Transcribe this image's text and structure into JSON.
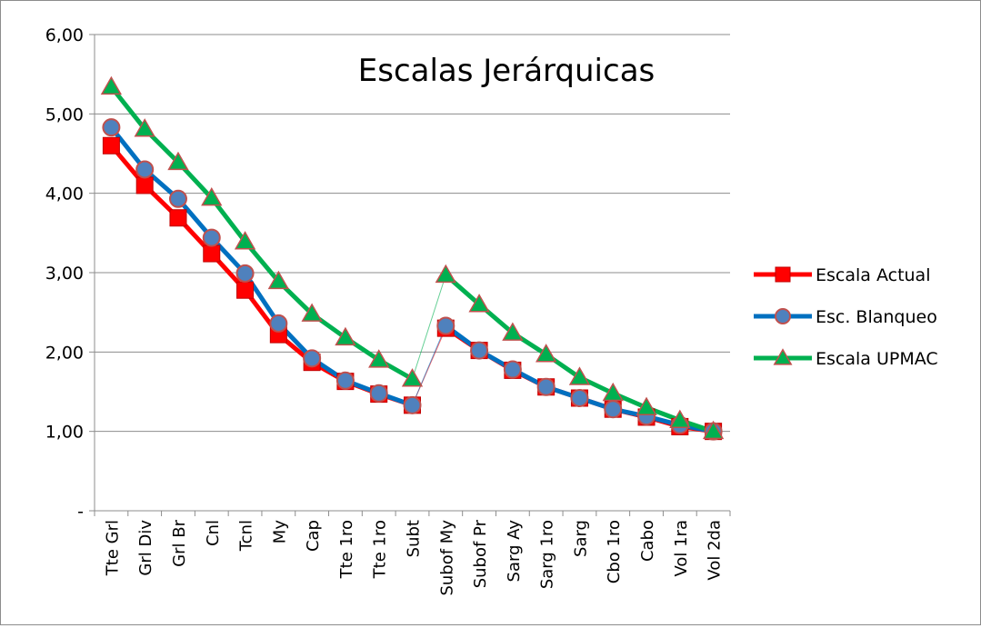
{
  "chart_data": {
    "type": "line",
    "title": "Escalas Jerárquicas",
    "xlabel": "",
    "ylabel": "",
    "categories": [
      "Tte Grl",
      "Grl Div",
      "Grl Br",
      "Cnl",
      "Tcnl",
      "My",
      "Cap",
      "Tte 1ro",
      "Tte 1ro",
      "Subt",
      "Subof My",
      "Subof Pr",
      "Sarg Ay",
      "Sarg 1ro",
      "Sarg",
      "Cbo 1ro",
      "Cabo",
      "Vol 1ra",
      "Vol 2da"
    ],
    "ylim": [
      0,
      6
    ],
    "yticks": [
      0,
      1,
      2,
      3,
      4,
      5,
      6
    ],
    "ytick_labels": [
      "-",
      "1,00",
      "2,00",
      "3,00",
      "4,00",
      "5,00",
      "6,00"
    ],
    "grid": "horizontal",
    "legend_position": "right",
    "series": [
      {
        "name": "Escala Actual",
        "color": "#ff0000",
        "marker": "square",
        "values": [
          4.6,
          4.1,
          3.69,
          3.24,
          2.78,
          2.22,
          1.87,
          1.63,
          1.47,
          1.33,
          2.3,
          2.02,
          1.77,
          1.56,
          1.42,
          1.28,
          1.18,
          1.06,
          1.0
        ]
      },
      {
        "name": "Esc. Blanqueo",
        "color": "#0070c0",
        "marker": "circle",
        "values": [
          4.83,
          4.3,
          3.93,
          3.44,
          2.99,
          2.36,
          1.92,
          1.64,
          1.48,
          1.33,
          2.33,
          2.02,
          1.78,
          1.56,
          1.42,
          1.28,
          1.19,
          1.08,
          1.0
        ]
      },
      {
        "name": "Escala UPMAC",
        "color": "#00b050",
        "marker": "triangle",
        "values": [
          5.34,
          4.81,
          4.39,
          3.94,
          3.39,
          2.89,
          2.48,
          2.18,
          1.9,
          1.66,
          2.97,
          2.6,
          2.24,
          1.97,
          1.68,
          1.48,
          1.3,
          1.14,
          1.0
        ]
      }
    ]
  }
}
